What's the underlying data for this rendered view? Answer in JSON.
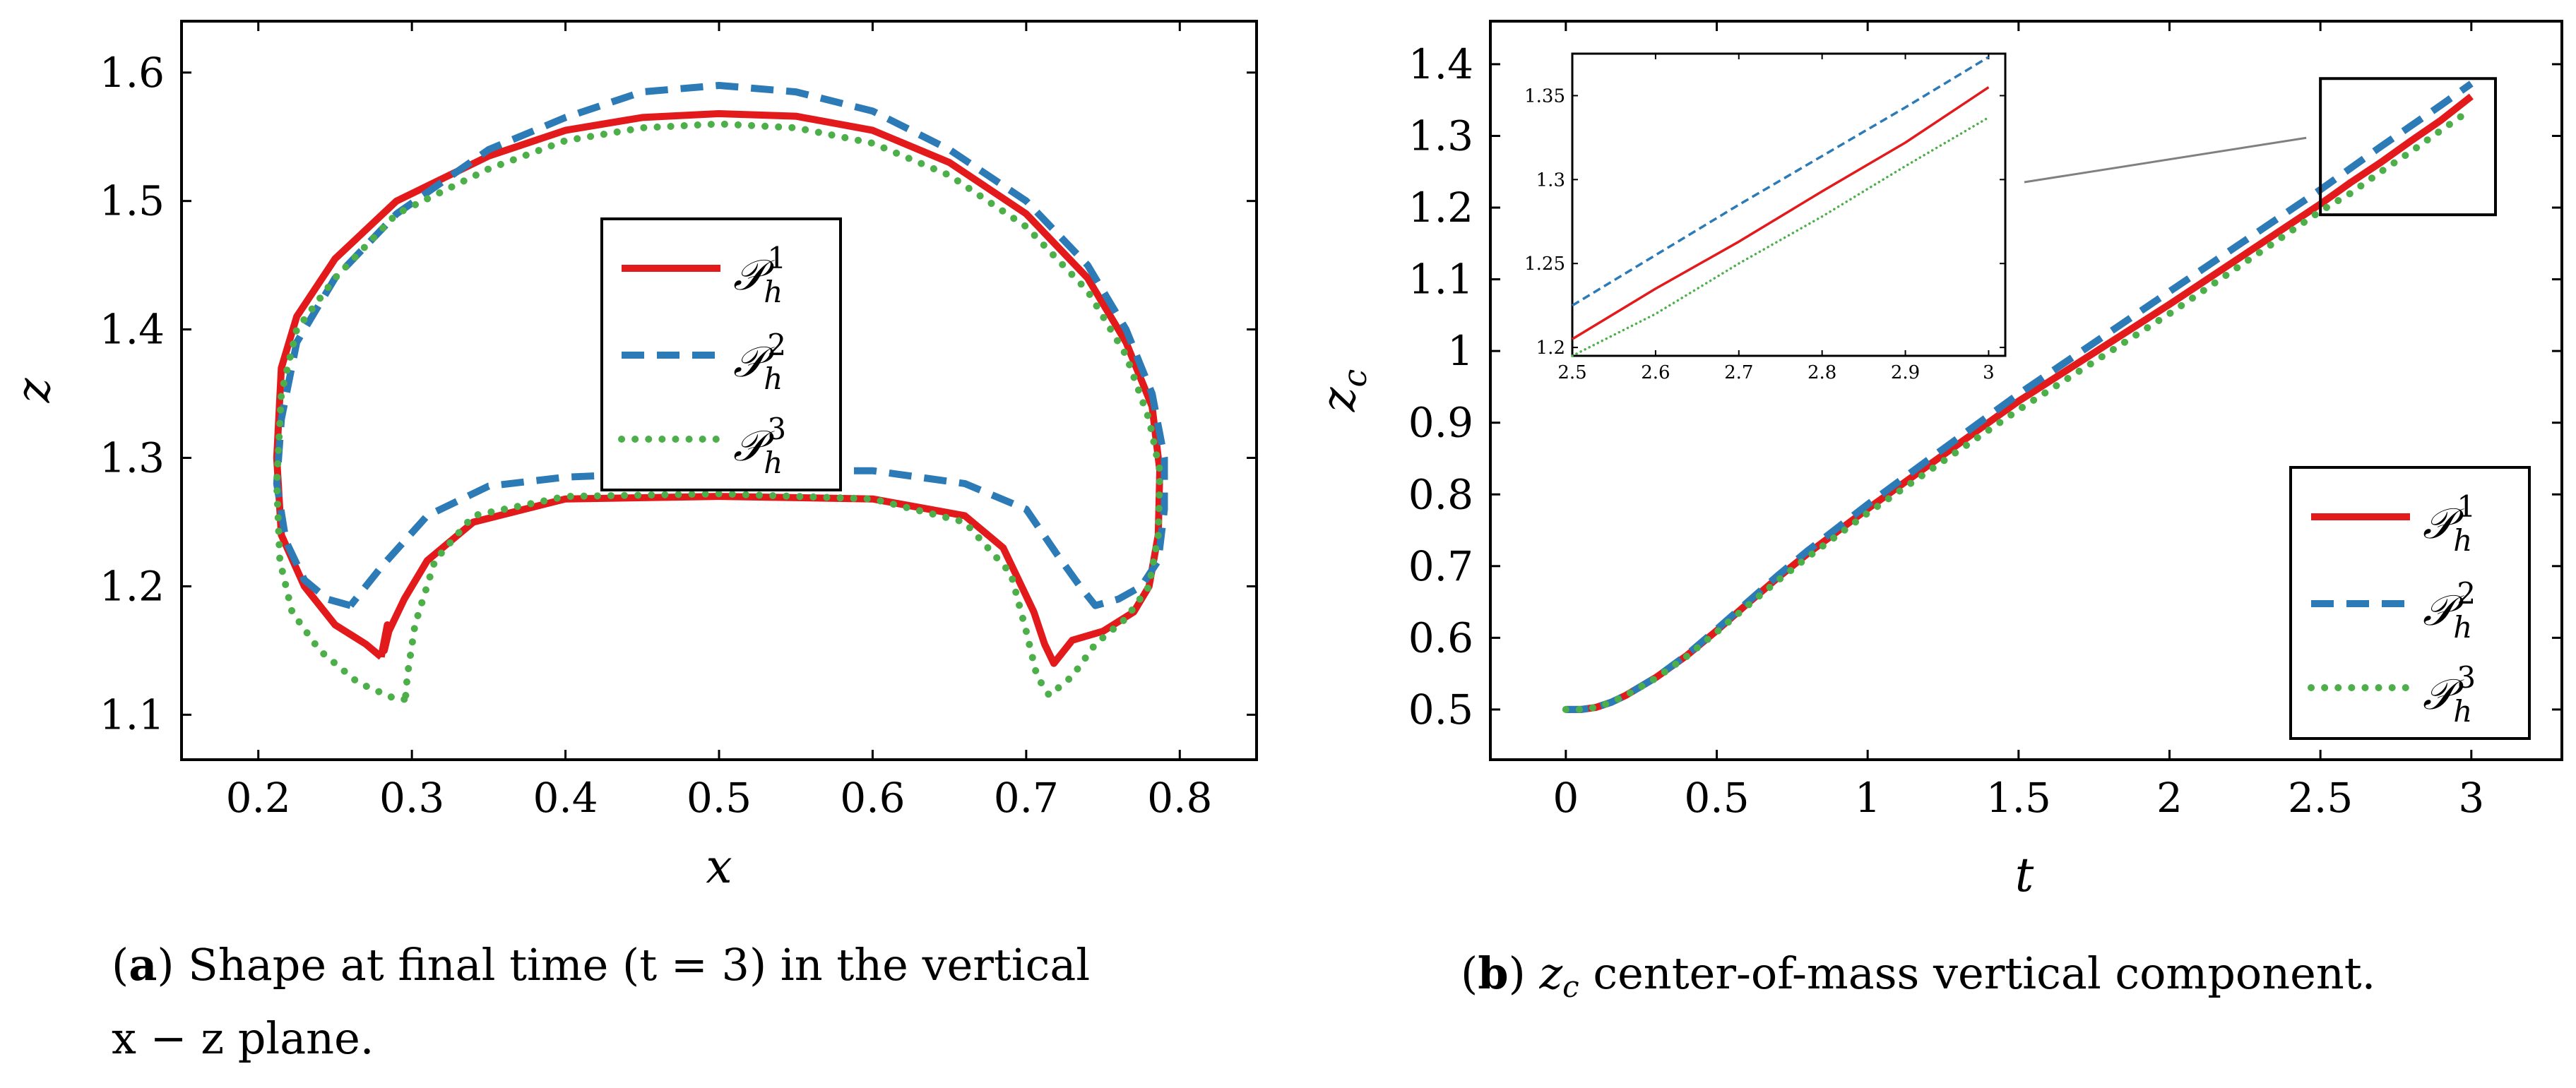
{
  "colors": {
    "p1": "#e31a1c",
    "p2": "#2c7bb6",
    "p3": "#4daf4a",
    "frame": "#000000",
    "connector": "#808080"
  },
  "legend": {
    "p1": {
      "base": "𝒫",
      "sub": "h",
      "sup": "1"
    },
    "p2": {
      "base": "𝒫",
      "sub": "h",
      "sup": "2"
    },
    "p3": {
      "base": "𝒫",
      "sub": "h",
      "sup": "3"
    }
  },
  "captions": {
    "a_label": "a",
    "a_line1": ") Shape at final time (t = 3) in the vertical",
    "a_line2": "x − z plane.",
    "b_label": "b",
    "b_var": "z",
    "b_sub": "c",
    "b_rest": " center-of-mass vertical component."
  },
  "chart_data": [
    {
      "id": "a",
      "type": "line",
      "title": "",
      "xlabel": "x",
      "ylabel": "z",
      "xlim": [
        0.15,
        0.85
      ],
      "ylim": [
        1.065,
        1.64
      ],
      "xticks": [
        0.2,
        0.3,
        0.4,
        0.5,
        0.6,
        0.7,
        0.8
      ],
      "xtick_labels": [
        "0.2",
        "0.3",
        "0.4",
        "0.5",
        "0.6",
        "0.7",
        "0.8"
      ],
      "yticks": [
        1.1,
        1.2,
        1.3,
        1.4,
        1.5,
        1.6
      ],
      "ytick_labels": [
        "1.1",
        "1.2",
        "1.3",
        "1.4",
        "1.5",
        "1.6"
      ],
      "grid": false,
      "legend_position": "center",
      "series": [
        {
          "name": "P_h^1",
          "style": "solid",
          "x": [
            0.28,
            0.27,
            0.25,
            0.23,
            0.215,
            0.212,
            0.215,
            0.225,
            0.25,
            0.29,
            0.35,
            0.4,
            0.45,
            0.5,
            0.55,
            0.6,
            0.65,
            0.7,
            0.74,
            0.765,
            0.782,
            0.787,
            0.786,
            0.78,
            0.77,
            0.75,
            0.73,
            0.718,
            0.712,
            0.705,
            0.695,
            0.685,
            0.66,
            0.6,
            0.5,
            0.4,
            0.34,
            0.31,
            0.295,
            0.285,
            0.282,
            0.284,
            0.28
          ],
          "y": [
            1.145,
            1.155,
            1.17,
            1.2,
            1.24,
            1.3,
            1.37,
            1.41,
            1.455,
            1.5,
            1.535,
            1.555,
            1.565,
            1.568,
            1.566,
            1.555,
            1.53,
            1.49,
            1.44,
            1.39,
            1.34,
            1.29,
            1.24,
            1.2,
            1.18,
            1.165,
            1.158,
            1.14,
            1.155,
            1.18,
            1.205,
            1.23,
            1.255,
            1.268,
            1.27,
            1.268,
            1.25,
            1.22,
            1.19,
            1.165,
            1.15,
            1.17,
            1.145
          ]
        },
        {
          "name": "P_h^2",
          "style": "dashed",
          "x": [
            0.26,
            0.245,
            0.23,
            0.218,
            0.212,
            0.215,
            0.225,
            0.25,
            0.29,
            0.35,
            0.4,
            0.45,
            0.5,
            0.55,
            0.6,
            0.65,
            0.7,
            0.74,
            0.765,
            0.782,
            0.79,
            0.79,
            0.786,
            0.775,
            0.76,
            0.745,
            0.735,
            0.72,
            0.7,
            0.66,
            0.6,
            0.5,
            0.4,
            0.35,
            0.31,
            0.28,
            0.26
          ],
          "y": [
            1.185,
            1.19,
            1.205,
            1.235,
            1.28,
            1.33,
            1.39,
            1.44,
            1.49,
            1.54,
            1.565,
            1.585,
            1.59,
            1.585,
            1.57,
            1.54,
            1.5,
            1.45,
            1.4,
            1.35,
            1.3,
            1.26,
            1.22,
            1.2,
            1.19,
            1.185,
            1.2,
            1.225,
            1.26,
            1.28,
            1.29,
            1.29,
            1.285,
            1.278,
            1.255,
            1.215,
            1.185
          ]
        },
        {
          "name": "P_h^3",
          "style": "dotted",
          "x": [
            0.295,
            0.29,
            0.265,
            0.24,
            0.222,
            0.214,
            0.212,
            0.215,
            0.225,
            0.25,
            0.29,
            0.35,
            0.4,
            0.45,
            0.5,
            0.55,
            0.6,
            0.65,
            0.7,
            0.74,
            0.765,
            0.78,
            0.787,
            0.786,
            0.78,
            0.765,
            0.745,
            0.73,
            0.715,
            0.707,
            0.7,
            0.69,
            0.66,
            0.6,
            0.5,
            0.4,
            0.34,
            0.315,
            0.302,
            0.297,
            0.296,
            0.295
          ],
          "y": [
            1.112,
            1.112,
            1.125,
            1.15,
            1.18,
            1.22,
            1.28,
            1.35,
            1.4,
            1.44,
            1.49,
            1.525,
            1.547,
            1.557,
            1.56,
            1.557,
            1.545,
            1.52,
            1.48,
            1.43,
            1.38,
            1.33,
            1.29,
            1.24,
            1.2,
            1.175,
            1.155,
            1.13,
            1.115,
            1.13,
            1.165,
            1.21,
            1.25,
            1.268,
            1.272,
            1.27,
            1.255,
            1.22,
            1.17,
            1.13,
            1.115,
            1.112
          ]
        }
      ]
    },
    {
      "id": "b",
      "type": "line",
      "title": "",
      "xlabel": "t",
      "ylabel": "z",
      "ylabel_sub": "c",
      "xlim": [
        -0.25,
        3.3
      ],
      "ylim": [
        0.43,
        1.46
      ],
      "xticks": [
        0,
        0.5,
        1,
        1.5,
        2,
        2.5,
        3
      ],
      "xtick_labels": [
        "0",
        "0.5",
        "1",
        "1.5",
        "2",
        "2.5",
        "3"
      ],
      "yticks": [
        0.5,
        0.6,
        0.7,
        0.8,
        0.9,
        1,
        1.1,
        1.2,
        1.3,
        1.4
      ],
      "ytick_labels": [
        "0.5",
        "0.6",
        "0.7",
        "0.8",
        "0.9",
        "1",
        "1.1",
        "1.2",
        "1.3",
        "1.4"
      ],
      "grid": false,
      "legend_position": "bottom-right",
      "series": [
        {
          "name": "P_h^1",
          "style": "solid",
          "x": [
            0,
            0.05,
            0.1,
            0.15,
            0.2,
            0.3,
            0.4,
            0.5,
            0.6,
            0.7,
            0.8,
            1.0,
            1.2,
            1.5,
            2.0,
            2.5,
            2.6,
            2.7,
            2.8,
            2.9,
            3.0
          ],
          "y": [
            0.5,
            0.5,
            0.503,
            0.51,
            0.52,
            0.545,
            0.575,
            0.61,
            0.647,
            0.683,
            0.717,
            0.78,
            0.84,
            0.93,
            1.065,
            1.205,
            1.235,
            1.263,
            1.293,
            1.322,
            1.355
          ]
        },
        {
          "name": "P_h^2",
          "style": "dashed",
          "x": [
            0,
            0.05,
            0.1,
            0.15,
            0.2,
            0.3,
            0.4,
            0.5,
            0.6,
            0.7,
            0.8,
            1.0,
            1.2,
            1.5,
            2.0,
            2.5,
            2.6,
            2.7,
            2.8,
            2.9,
            3.0
          ],
          "y": [
            0.5,
            0.5,
            0.503,
            0.51,
            0.52,
            0.545,
            0.576,
            0.612,
            0.649,
            0.686,
            0.721,
            0.786,
            0.848,
            0.94,
            1.083,
            1.225,
            1.255,
            1.285,
            1.314,
            1.343,
            1.373
          ]
        },
        {
          "name": "P_h^3",
          "style": "dotted",
          "x": [
            0,
            0.05,
            0.1,
            0.15,
            0.2,
            0.3,
            0.4,
            0.5,
            0.6,
            0.7,
            0.8,
            1.0,
            1.2,
            1.5,
            2.0,
            2.5,
            2.6,
            2.7,
            2.8,
            2.9,
            3.0
          ],
          "y": [
            0.5,
            0.5,
            0.503,
            0.51,
            0.52,
            0.544,
            0.574,
            0.608,
            0.644,
            0.679,
            0.712,
            0.774,
            0.832,
            0.918,
            1.052,
            1.195,
            1.22,
            1.25,
            1.278,
            1.308,
            1.337
          ]
        }
      ],
      "zoom_box": {
        "xlim": [
          2.5,
          3.08
        ],
        "ylim": [
          1.19,
          1.38
        ]
      },
      "inset": {
        "xlim": [
          2.5,
          3.02
        ],
        "ylim": [
          1.195,
          1.375
        ],
        "xticks": [
          2.5,
          2.6,
          2.7,
          2.8,
          2.9,
          3
        ],
        "xtick_labels": [
          "2.5",
          "2.6",
          "2.7",
          "2.8",
          "2.9",
          "3"
        ],
        "yticks": [
          1.2,
          1.25,
          1.3,
          1.35
        ],
        "ytick_labels": [
          "1.2",
          "1.25",
          "1.3",
          "1.35"
        ]
      }
    }
  ]
}
